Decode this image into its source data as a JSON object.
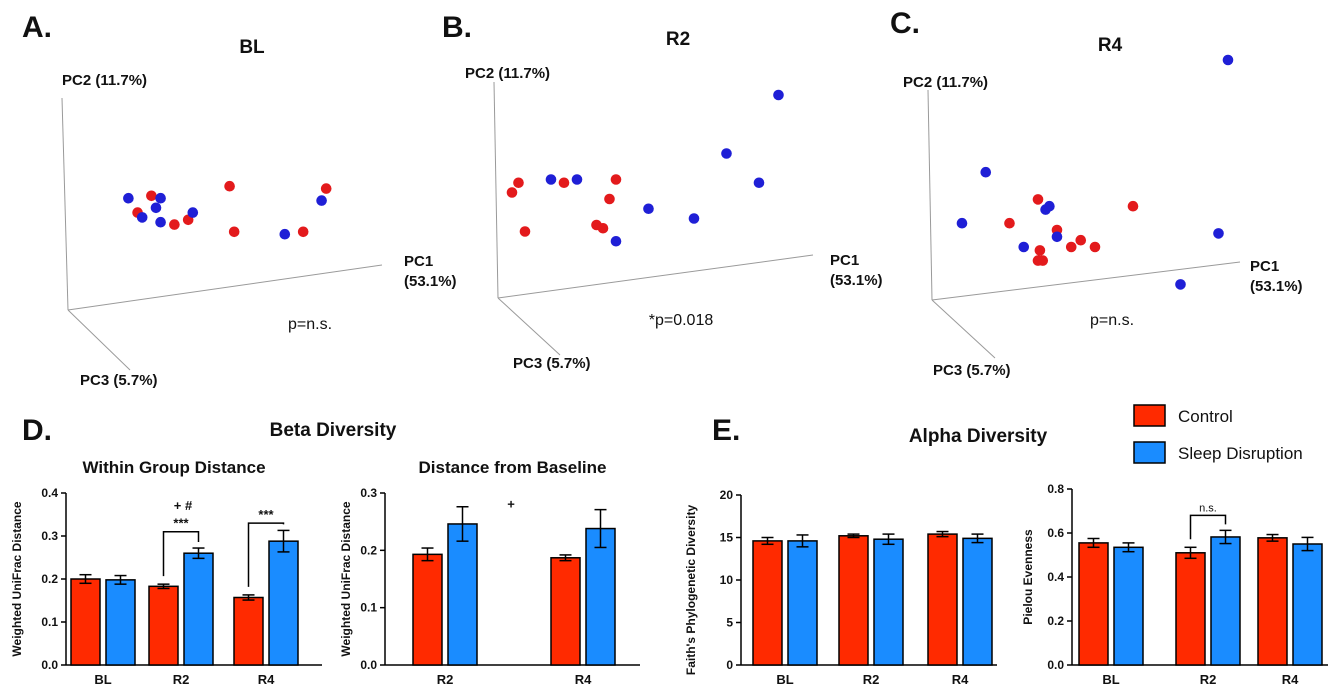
{
  "colors": {
    "control": "#ff2a00",
    "sleep_disruption": "#1a8cff",
    "pcoa_control": "#e31a1c",
    "pcoa_sleep": "#1f1fd6",
    "axis": "#9a9a9a"
  },
  "legend": [
    {
      "key": "control",
      "label": "Control"
    },
    {
      "key": "sleep_disruption",
      "label": "Sleep Disruption"
    }
  ],
  "chart_data": [
    {
      "panel": "A.",
      "type": "scatter",
      "title": "BL",
      "axis_labels": {
        "pc1": "PC1\n(53.1%)",
        "pc2": "PC2 (11.7%)",
        "pc3": "PC3 (5.7%)"
      },
      "annotation": "p=n.s.",
      "points": [
        {
          "x": -0.95,
          "y": 0.05,
          "group": "control"
        },
        {
          "x": -0.8,
          "y": 0.4,
          "group": "control"
        },
        {
          "x": -0.55,
          "y": -0.2,
          "group": "control"
        },
        {
          "x": -0.4,
          "y": -0.1,
          "group": "control"
        },
        {
          "x": 0.05,
          "y": 0.6,
          "group": "control"
        },
        {
          "x": 0.1,
          "y": -0.35,
          "group": "control"
        },
        {
          "x": 0.85,
          "y": -0.35,
          "group": "control"
        },
        {
          "x": 1.1,
          "y": 0.55,
          "group": "control"
        },
        {
          "x": -1.05,
          "y": 0.35,
          "group": "sleep_disruption"
        },
        {
          "x": -0.9,
          "y": -0.05,
          "group": "sleep_disruption"
        },
        {
          "x": -0.75,
          "y": 0.15,
          "group": "sleep_disruption"
        },
        {
          "x": -0.7,
          "y": 0.35,
          "group": "sleep_disruption"
        },
        {
          "x": -0.7,
          "y": -0.15,
          "group": "sleep_disruption"
        },
        {
          "x": -0.35,
          "y": 0.05,
          "group": "sleep_disruption"
        },
        {
          "x": 0.65,
          "y": -0.4,
          "group": "sleep_disruption"
        },
        {
          "x": 1.05,
          "y": 0.3,
          "group": "sleep_disruption"
        }
      ]
    },
    {
      "panel": "B.",
      "type": "scatter",
      "title": "R2",
      "axis_labels": {
        "pc1": "PC1\n(53.1%)",
        "pc2": "PC2 (11.7%)",
        "pc3": "PC3 (5.7%)"
      },
      "annotation": "*p=0.018",
      "points": [
        {
          "x": -1.1,
          "y": 0.3,
          "group": "control"
        },
        {
          "x": -1.05,
          "y": 0.45,
          "group": "control"
        },
        {
          "x": -1.0,
          "y": -0.3,
          "group": "control"
        },
        {
          "x": -0.7,
          "y": 0.45,
          "group": "control"
        },
        {
          "x": -0.35,
          "y": 0.2,
          "group": "control"
        },
        {
          "x": -0.3,
          "y": 0.5,
          "group": "control"
        },
        {
          "x": -0.45,
          "y": -0.2,
          "group": "control"
        },
        {
          "x": -0.4,
          "y": -0.25,
          "group": "control"
        },
        {
          "x": -0.8,
          "y": 0.5,
          "group": "sleep_disruption"
        },
        {
          "x": -0.6,
          "y": 0.5,
          "group": "sleep_disruption"
        },
        {
          "x": -0.3,
          "y": -0.45,
          "group": "sleep_disruption"
        },
        {
          "x": -0.05,
          "y": 0.05,
          "group": "sleep_disruption"
        },
        {
          "x": 0.3,
          "y": -0.1,
          "group": "sleep_disruption"
        },
        {
          "x": 0.55,
          "y": 0.9,
          "group": "sleep_disruption"
        },
        {
          "x": 0.8,
          "y": 0.45,
          "group": "sleep_disruption"
        },
        {
          "x": 0.95,
          "y": 1.8,
          "group": "sleep_disruption"
        }
      ]
    },
    {
      "panel": "C.",
      "type": "scatter",
      "title": "R4",
      "axis_labels": {
        "pc1": "PC1\n(53.1%)",
        "pc2": "PC2 (11.7%)",
        "pc3": "PC3 (5.7%)"
      },
      "annotation": "p=n.s.",
      "points": [
        {
          "x": -0.9,
          "y": 0.1,
          "group": "control"
        },
        {
          "x": -0.6,
          "y": 0.45,
          "group": "control"
        },
        {
          "x": -0.4,
          "y": 0.0,
          "group": "control"
        },
        {
          "x": -0.6,
          "y": -0.45,
          "group": "control"
        },
        {
          "x": -0.55,
          "y": -0.45,
          "group": "control"
        },
        {
          "x": -0.58,
          "y": -0.3,
          "group": "control"
        },
        {
          "x": -0.25,
          "y": -0.25,
          "group": "control"
        },
        {
          "x": -0.15,
          "y": -0.15,
          "group": "control"
        },
        {
          "x": 0.0,
          "y": -0.25,
          "group": "control"
        },
        {
          "x": 0.4,
          "y": 0.35,
          "group": "control"
        },
        {
          "x": -1.4,
          "y": 0.1,
          "group": "sleep_disruption"
        },
        {
          "x": -1.15,
          "y": 0.85,
          "group": "sleep_disruption"
        },
        {
          "x": -0.75,
          "y": -0.25,
          "group": "sleep_disruption"
        },
        {
          "x": -0.52,
          "y": 0.3,
          "group": "sleep_disruption"
        },
        {
          "x": -0.48,
          "y": 0.35,
          "group": "sleep_disruption"
        },
        {
          "x": -0.4,
          "y": -0.1,
          "group": "sleep_disruption"
        },
        {
          "x": 0.9,
          "y": -0.8,
          "group": "sleep_disruption"
        },
        {
          "x": 1.3,
          "y": -0.05,
          "group": "sleep_disruption"
        },
        {
          "x": 1.4,
          "y": 2.5,
          "group": "sleep_disruption"
        }
      ]
    },
    {
      "panel": "D.",
      "section_title": "Beta Diversity",
      "type": "bar",
      "title": "Within Group Distance",
      "ylabel": "Weighted UniFrac Distance",
      "ylim": [
        0,
        0.4
      ],
      "yticks": [
        "0.0",
        "0.1",
        "0.2",
        "0.3",
        "0.4"
      ],
      "categories": [
        "BL",
        "R2",
        "R4"
      ],
      "series": [
        {
          "name": "Control",
          "key": "control",
          "values": [
            0.2,
            0.183,
            0.157
          ],
          "errors": [
            0.01,
            0.005,
            0.006
          ]
        },
        {
          "name": "Sleep Disruption",
          "key": "sleep_disruption",
          "values": [
            0.198,
            0.26,
            0.288
          ],
          "errors": [
            0.01,
            0.012,
            0.025
          ]
        }
      ],
      "significance": [
        {
          "category": "R2",
          "text": "***",
          "level": 0.31
        },
        {
          "category": "R4",
          "text": "***",
          "level": 0.33
        }
      ],
      "annotations": [
        {
          "text": "+ #",
          "category": "R2",
          "level": 0.37
        }
      ]
    },
    {
      "panel": "",
      "type": "bar",
      "title": "Distance from Baseline",
      "ylabel": "Weighted UniFrac Distance",
      "ylim": [
        0,
        0.3
      ],
      "yticks": [
        "0.0",
        "0.1",
        "0.2",
        "0.3"
      ],
      "categories": [
        "R2",
        "R4"
      ],
      "series": [
        {
          "name": "Control",
          "key": "control",
          "values": [
            0.193,
            0.187
          ],
          "errors": [
            0.011,
            0.005
          ]
        },
        {
          "name": "Sleep Disruption",
          "key": "sleep_disruption",
          "values": [
            0.246,
            0.238
          ],
          "errors": [
            0.03,
            0.033
          ]
        }
      ],
      "significance": [],
      "annotations": [
        {
          "text": "+",
          "between": true,
          "level": 0.28
        }
      ]
    },
    {
      "panel": "E.",
      "section_title": "Alpha Diversity",
      "type": "bar",
      "title": "",
      "ylabel": "Faith's Phylogenetic Diversity",
      "ylim": [
        0,
        20
      ],
      "yticks": [
        "0",
        "5",
        "10",
        "15",
        "20"
      ],
      "categories": [
        "BL",
        "R2",
        "R4"
      ],
      "series": [
        {
          "name": "Control",
          "key": "control",
          "values": [
            14.6,
            15.2,
            15.4
          ],
          "errors": [
            0.4,
            0.2,
            0.3
          ]
        },
        {
          "name": "Sleep Disruption",
          "key": "sleep_disruption",
          "values": [
            14.6,
            14.8,
            14.9
          ],
          "errors": [
            0.7,
            0.6,
            0.5
          ]
        }
      ],
      "significance": [],
      "annotations": []
    },
    {
      "panel": "",
      "type": "bar",
      "title": "",
      "ylabel": "Pielou Evenness",
      "ylim": [
        0,
        0.8
      ],
      "yticks": [
        "0.0",
        "0.2",
        "0.4",
        "0.6",
        "0.8"
      ],
      "categories": [
        "BL",
        "R2",
        "R4"
      ],
      "series": [
        {
          "name": "Control",
          "key": "control",
          "values": [
            0.555,
            0.51,
            0.578
          ],
          "errors": [
            0.02,
            0.025,
            0.015
          ]
        },
        {
          "name": "Sleep Disruption",
          "key": "sleep_disruption",
          "values": [
            0.535,
            0.582,
            0.55
          ],
          "errors": [
            0.02,
            0.03,
            0.03
          ]
        }
      ],
      "significance": [
        {
          "category": "R2",
          "text": "n.s.",
          "level": 0.68
        }
      ],
      "annotations": []
    }
  ]
}
